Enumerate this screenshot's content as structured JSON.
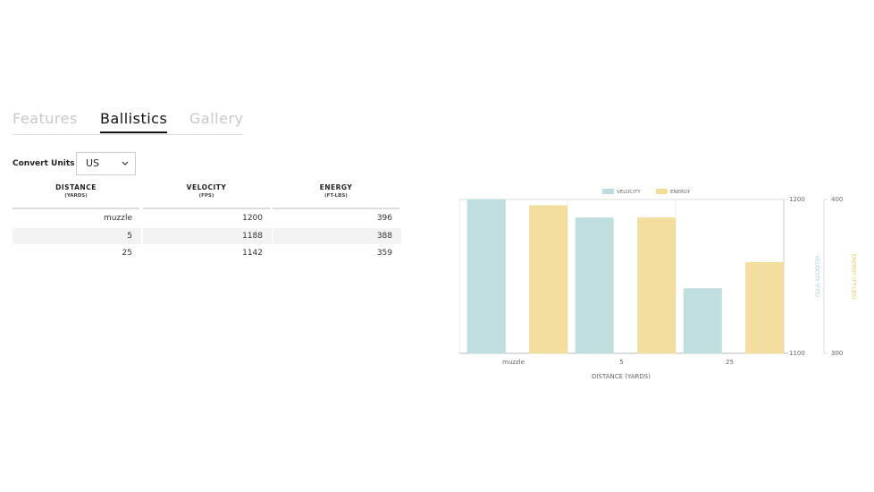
{
  "tabs": [
    "Features",
    "Ballistics",
    "Gallery"
  ],
  "convert_units": {
    "label": "Convert Units",
    "value": "US"
  },
  "table": {
    "columns": [
      {
        "name": "DISTANCE",
        "unit": "(YARDS)"
      },
      {
        "name": "VELOCITY",
        "unit": "(FPS)"
      },
      {
        "name": "ENERGY",
        "unit": "(FT-LBS)"
      }
    ],
    "rows": [
      [
        "muzzle",
        1200,
        396
      ],
      [
        5,
        1188,
        388
      ],
      [
        25,
        1142,
        359
      ]
    ]
  },
  "chart_data": {
    "type": "bar",
    "categories": [
      "muzzle",
      "5",
      "25"
    ],
    "series": [
      {
        "name": "VELOCITY",
        "color": "#bddcdd",
        "values": [
          1200,
          1188,
          1142
        ]
      },
      {
        "name": "ENERGY",
        "color": "#f2dc9a",
        "values": [
          396,
          388,
          359
        ],
        "axis": "y2"
      }
    ],
    "ylim": [
      1100,
      1200
    ],
    "yticks": [
      1100,
      1200
    ],
    "y2lim": [
      300,
      400
    ],
    "y2ticks": [
      300,
      400
    ],
    "xlabel": "DISTANCE (YARDS)",
    "ylabel": "VELOCITY (FPS)",
    "y2label": "ENERGY (FT-LBS)"
  }
}
